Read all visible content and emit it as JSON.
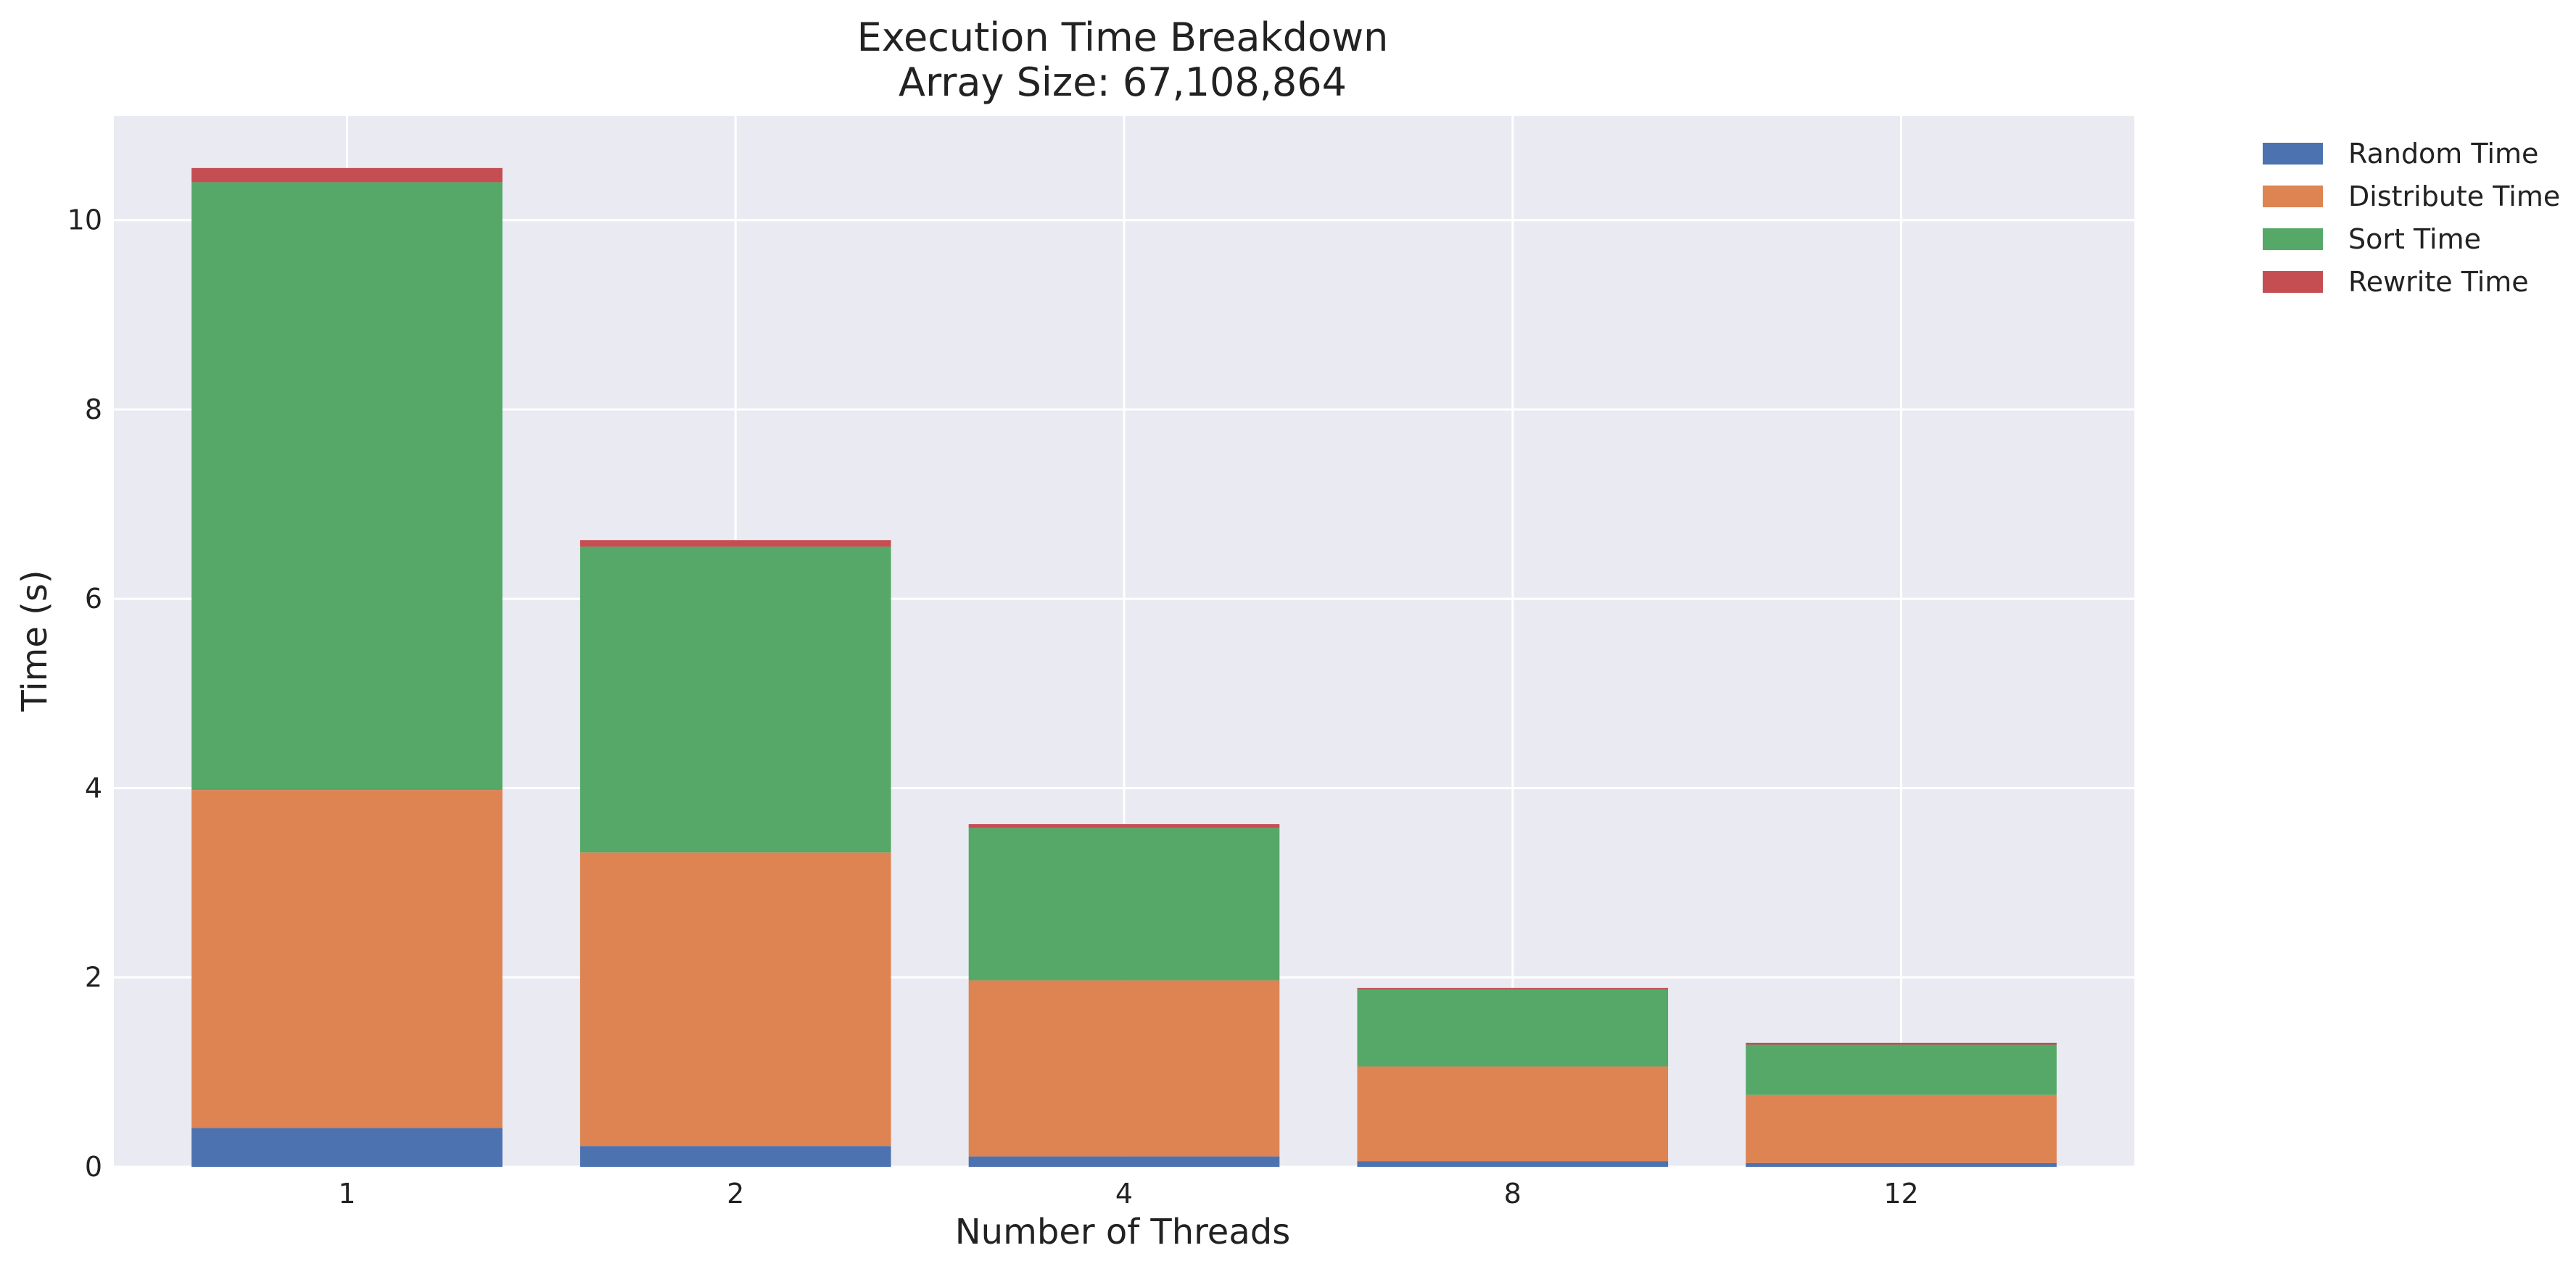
{
  "chart_data": {
    "type": "bar",
    "stacked": true,
    "title": "Execution Time Breakdown",
    "subtitle": "Array Size: 67,108,864",
    "xlabel": "Number of Threads",
    "ylabel": "Time (s)",
    "categories": [
      "1",
      "2",
      "4",
      "8",
      "12"
    ],
    "ylim": [
      0,
      11.1
    ],
    "yticks": [
      0,
      2,
      4,
      6,
      8,
      10
    ],
    "grid": true,
    "legend_position": "outside-top-right",
    "series": [
      {
        "name": "Random Time",
        "color": "#4c72b0",
        "values": [
          0.41,
          0.22,
          0.11,
          0.06,
          0.04
        ]
      },
      {
        "name": "Distribute Time",
        "color": "#dd8452",
        "values": [
          3.57,
          3.1,
          1.86,
          1.0,
          0.72
        ]
      },
      {
        "name": "Sort Time",
        "color": "#55a868",
        "values": [
          6.42,
          3.23,
          1.61,
          0.81,
          0.53
        ]
      },
      {
        "name": "Rewrite Time",
        "color": "#c44e52",
        "values": [
          0.15,
          0.07,
          0.04,
          0.02,
          0.02
        ]
      }
    ],
    "plot_background": "#eaeaf2",
    "grid_color": "#ffffff"
  }
}
